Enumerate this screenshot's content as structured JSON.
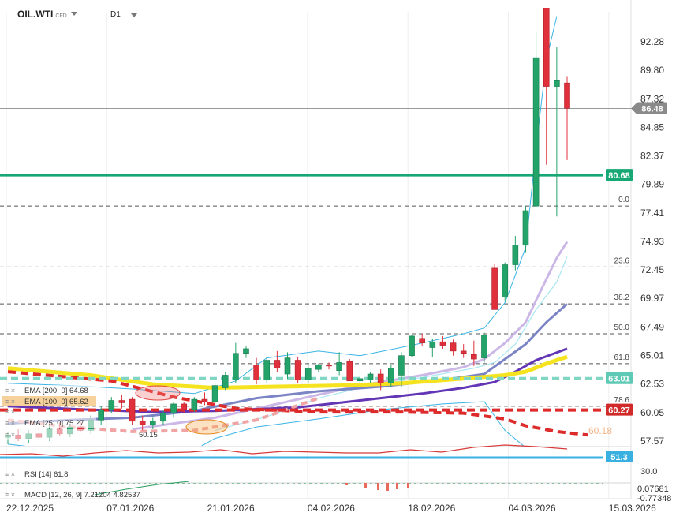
{
  "header": {
    "symbol": "OIL.WTI",
    "instrument_type": "CFD",
    "timeframe": "D1"
  },
  "colors": {
    "up": "#23a369",
    "down": "#e0303c",
    "support": "#15a874",
    "teal_dash": "#7fd6c3",
    "blue_line": "#3ab4e6",
    "yellow": "#f5e320",
    "red_dash": "#dd2a2a"
  },
  "chart_data": {
    "type": "candlestick",
    "price_axis": {
      "ticks": [
        "92.28",
        "89.80",
        "87.32",
        "84.85",
        "82.37",
        "79.89",
        "77.41",
        "74.93",
        "72.45",
        "69.97",
        "67.49",
        "65.01",
        "62.53",
        "60.05",
        "57.57"
      ],
      "range": [
        57.1,
        94.0
      ]
    },
    "date_axis": [
      "22.12.2025",
      "07.01.2026",
      "21.01.2026",
      "04.02.2026",
      "18.02.2026",
      "04.03.2026",
      "15.03.2026"
    ],
    "candles": [
      {
        "o": 57.9,
        "h": 58.4,
        "l": 57.3,
        "c": 58.1
      },
      {
        "o": 58.1,
        "h": 58.6,
        "l": 57.6,
        "c": 57.8
      },
      {
        "o": 57.8,
        "h": 58.5,
        "l": 57.4,
        "c": 58.2
      },
      {
        "o": 58.2,
        "h": 58.8,
        "l": 57.7,
        "c": 57.9
      },
      {
        "o": 57.9,
        "h": 58.9,
        "l": 57.6,
        "c": 58.6
      },
      {
        "o": 58.6,
        "h": 59.2,
        "l": 58.0,
        "c": 58.2
      },
      {
        "o": 58.2,
        "h": 59.0,
        "l": 57.9,
        "c": 58.8
      },
      {
        "o": 58.8,
        "h": 59.3,
        "l": 58.3,
        "c": 58.5
      },
      {
        "o": 58.5,
        "h": 59.8,
        "l": 58.2,
        "c": 59.4
      },
      {
        "o": 59.4,
        "h": 60.6,
        "l": 59.0,
        "c": 60.3
      },
      {
        "o": 60.3,
        "h": 61.4,
        "l": 60.0,
        "c": 61.1
      },
      {
        "o": 61.1,
        "h": 61.6,
        "l": 60.4,
        "c": 60.9
      },
      {
        "o": 61.2,
        "h": 61.4,
        "l": 59.0,
        "c": 59.3
      },
      {
        "o": 59.3,
        "h": 59.8,
        "l": 58.5,
        "c": 59.0
      },
      {
        "o": 59.0,
        "h": 59.6,
        "l": 58.6,
        "c": 59.3
      },
      {
        "o": 59.3,
        "h": 60.2,
        "l": 59.0,
        "c": 60.0
      },
      {
        "o": 60.0,
        "h": 61.0,
        "l": 59.6,
        "c": 60.8
      },
      {
        "o": 60.8,
        "h": 61.0,
        "l": 60.0,
        "c": 60.3
      },
      {
        "o": 60.3,
        "h": 61.4,
        "l": 60.1,
        "c": 61.2
      },
      {
        "o": 61.2,
        "h": 61.8,
        "l": 60.7,
        "c": 61.0
      },
      {
        "o": 61.0,
        "h": 62.6,
        "l": 60.8,
        "c": 62.4
      },
      {
        "o": 62.2,
        "h": 63.6,
        "l": 62.0,
        "c": 63.3
      },
      {
        "o": 62.9,
        "h": 66.1,
        "l": 62.6,
        "c": 65.2
      },
      {
        "o": 65.2,
        "h": 65.8,
        "l": 64.8,
        "c": 65.6
      },
      {
        "o": 64.2,
        "h": 64.8,
        "l": 62.5,
        "c": 62.9
      },
      {
        "o": 62.9,
        "h": 64.9,
        "l": 62.6,
        "c": 64.6
      },
      {
        "o": 64.6,
        "h": 65.4,
        "l": 63.6,
        "c": 63.9
      },
      {
        "o": 63.4,
        "h": 65.3,
        "l": 63.0,
        "c": 64.8
      },
      {
        "o": 64.6,
        "h": 64.9,
        "l": 62.6,
        "c": 62.9
      },
      {
        "o": 62.9,
        "h": 64.3,
        "l": 62.6,
        "c": 63.9
      },
      {
        "o": 63.8,
        "h": 64.3,
        "l": 63.6,
        "c": 64.2
      },
      {
        "o": 64.2,
        "h": 64.4,
        "l": 63.8,
        "c": 64.1
      },
      {
        "o": 63.7,
        "h": 65.3,
        "l": 63.3,
        "c": 64.4
      },
      {
        "o": 64.5,
        "h": 64.7,
        "l": 62.8,
        "c": 62.8
      },
      {
        "o": 62.8,
        "h": 63.3,
        "l": 62.6,
        "c": 63.0
      },
      {
        "o": 62.9,
        "h": 63.6,
        "l": 62.6,
        "c": 63.4
      },
      {
        "o": 63.4,
        "h": 63.8,
        "l": 62.0,
        "c": 62.6
      },
      {
        "o": 62.6,
        "h": 64.2,
        "l": 62.3,
        "c": 63.9
      },
      {
        "o": 63.3,
        "h": 65.3,
        "l": 62.3,
        "c": 65.0
      },
      {
        "o": 65.0,
        "h": 66.8,
        "l": 64.9,
        "c": 66.7
      },
      {
        "o": 66.5,
        "h": 66.9,
        "l": 65.8,
        "c": 66.1
      },
      {
        "o": 65.7,
        "h": 66.5,
        "l": 64.9,
        "c": 66.2
      },
      {
        "o": 66.2,
        "h": 66.7,
        "l": 65.6,
        "c": 65.9
      },
      {
        "o": 66.1,
        "h": 66.4,
        "l": 65.0,
        "c": 65.4
      },
      {
        "o": 65.4,
        "h": 66.0,
        "l": 64.8,
        "c": 65.2
      },
      {
        "o": 65.1,
        "h": 66.3,
        "l": 64.1,
        "c": 64.7
      },
      {
        "o": 64.8,
        "h": 67.0,
        "l": 64.4,
        "c": 66.8
      },
      {
        "o": 72.6,
        "h": 73.0,
        "l": 69.0,
        "c": 69.0
      },
      {
        "o": 70.1,
        "h": 73.1,
        "l": 69.7,
        "c": 72.9
      },
      {
        "o": 72.9,
        "h": 75.4,
        "l": 72.4,
        "c": 74.6
      },
      {
        "o": 74.6,
        "h": 78.0,
        "l": 74.0,
        "c": 77.6
      },
      {
        "o": 78.0,
        "h": 93.1,
        "l": 77.9,
        "c": 90.9
      },
      {
        "o": 95.9,
        "h": 96.1,
        "l": 81.6,
        "c": 88.4
      },
      {
        "o": 88.4,
        "h": 91.8,
        "l": 77.1,
        "c": 88.9
      },
      {
        "o": 88.7,
        "h": 89.3,
        "l": 82.0,
        "c": 86.5
      }
    ],
    "horizontal_levels": [
      {
        "price": 86.48,
        "label": "86.48",
        "style": "current"
      },
      {
        "price": 80.68,
        "label": "80.68",
        "style": "support"
      },
      {
        "price": 63.01,
        "label": "63.01",
        "style": "teal-dash"
      },
      {
        "price": 60.27,
        "label": "60.27",
        "style": "red-dash"
      }
    ],
    "fibonacci": [
      {
        "level": "0.0",
        "price": 78.0
      },
      {
        "level": "23.6",
        "price": 72.7
      },
      {
        "level": "38.2",
        "price": 69.5
      },
      {
        "level": "50.0",
        "price": 66.9
      },
      {
        "level": "61.8",
        "price": 64.3
      },
      {
        "level": "78.6",
        "price": 60.6
      }
    ],
    "legend": [
      {
        "name": "EMA",
        "params": "[200, 0]",
        "value": "64.68"
      },
      {
        "name": "EMA",
        "params": "[100, 0]",
        "value": "65.62"
      },
      {
        "name": "EMA",
        "params": "[25, 0]",
        "value": "75.27"
      },
      {
        "name": "",
        "params": "",
        "value": "50.15"
      }
    ],
    "rsi": {
      "label": "RSI [14]",
      "value": "61.8",
      "level": "51.3",
      "tick": "30.0"
    },
    "macd": {
      "label": "MACD [12, 26, 9]",
      "value1": "7.21204",
      "value2": "4.82537",
      "ticks": [
        "0.07681",
        "-0.77348"
      ]
    },
    "faded_label": "60.18"
  }
}
